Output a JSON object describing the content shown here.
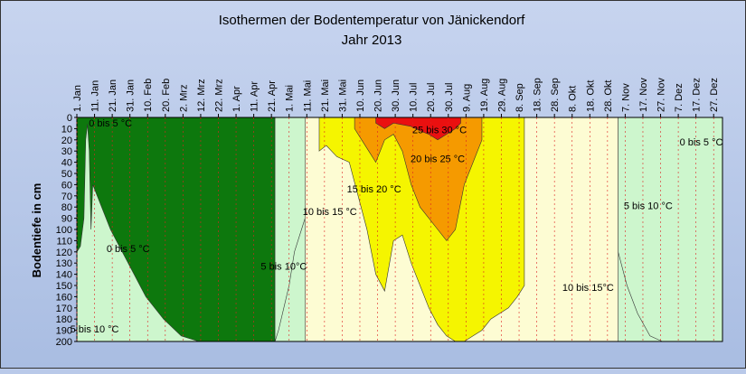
{
  "chart_data": {
    "type": "area",
    "title_line1": "Isothermen der Bodentemperatur von Jänickendorf",
    "title_line2": "Jahr 2013",
    "ylabel": "Bodentiefe in cm",
    "xlabel": "",
    "ylim": [
      0,
      200
    ],
    "y_inverted": true,
    "x_unit": "day_of_year",
    "x_ticks": [
      {
        "day": 1,
        "label": "1. Jan"
      },
      {
        "day": 11,
        "label": "11. Jan"
      },
      {
        "day": 21,
        "label": "21. Jan"
      },
      {
        "day": 31,
        "label": "31. Jan"
      },
      {
        "day": 41,
        "label": "10. Feb"
      },
      {
        "day": 51,
        "label": "20. Feb"
      },
      {
        "day": 61,
        "label": "2. Mrz"
      },
      {
        "day": 71,
        "label": "12. Mrz"
      },
      {
        "day": 81,
        "label": "22. Mrz"
      },
      {
        "day": 91,
        "label": "1. Apr"
      },
      {
        "day": 101,
        "label": "11. Apr"
      },
      {
        "day": 111,
        "label": "21. Apr"
      },
      {
        "day": 121,
        "label": "1. Mai"
      },
      {
        "day": 131,
        "label": "11. Mai"
      },
      {
        "day": 141,
        "label": "21. Mai"
      },
      {
        "day": 151,
        "label": "31. Mai"
      },
      {
        "day": 161,
        "label": "10. Jun"
      },
      {
        "day": 171,
        "label": "20. Jun"
      },
      {
        "day": 181,
        "label": "30. Jun"
      },
      {
        "day": 191,
        "label": "10. Jul"
      },
      {
        "day": 201,
        "label": "20. Jul"
      },
      {
        "day": 211,
        "label": "30. Jul"
      },
      {
        "day": 221,
        "label": "9. Aug"
      },
      {
        "day": 231,
        "label": "19. Aug"
      },
      {
        "day": 241,
        "label": "29. Aug"
      },
      {
        "day": 251,
        "label": "8. Sep"
      },
      {
        "day": 261,
        "label": "18. Sep"
      },
      {
        "day": 271,
        "label": "28. Sep"
      },
      {
        "day": 281,
        "label": "8. Okt"
      },
      {
        "day": 291,
        "label": "18. Okt"
      },
      {
        "day": 301,
        "label": "28. Okt"
      },
      {
        "day": 311,
        "label": "7. Nov"
      },
      {
        "day": 321,
        "label": "17. Nov"
      },
      {
        "day": 331,
        "label": "27. Nov"
      },
      {
        "day": 341,
        "label": "7. Dez"
      },
      {
        "day": 351,
        "label": "17. Dez"
      },
      {
        "day": 361,
        "label": "27. Dez"
      }
    ],
    "y_ticks": [
      0,
      10,
      20,
      30,
      40,
      50,
      60,
      70,
      80,
      90,
      100,
      110,
      120,
      130,
      140,
      150,
      160,
      170,
      180,
      190,
      200
    ],
    "zones": [
      {
        "name": "0 bis 5 °C",
        "color": "#0d780d",
        "regions": [
          {
            "x": [
              1,
              3,
              5,
              6,
              7,
              8,
              9,
              10,
              20,
              30,
              40,
              50,
              60,
              70,
              80,
              90,
              95,
              100,
              105,
              107,
              110,
              113
            ],
            "depth": [
              120,
              115,
              90,
              20,
              6,
              30,
              100,
              60,
              100,
              130,
              160,
              180,
              195,
              200,
              200,
              200,
              200,
              200,
              200,
              200,
              200,
              200
            ],
            "top": [
              0,
              0,
              0,
              0,
              0,
              0,
              0,
              0,
              0,
              0,
              0,
              0,
              0,
              0,
              0,
              0,
              0,
              0,
              0,
              0,
              0,
              0
            ]
          }
        ]
      },
      {
        "name": "5 bis 10 °C",
        "color": "#cdf6cd",
        "regions": [
          {
            "x": [
              113,
              115,
              118,
              121,
              124,
              128,
              132,
              135,
              138
            ],
            "depth": [
              200,
              190,
              170,
              150,
              120,
              100,
              80,
              60,
              40
            ],
            "top": [
              0,
              0,
              0,
              0,
              0,
              0,
              0,
              0,
              0
            ]
          },
          {
            "x": [
              307,
              312,
              318,
              325,
              332,
              340,
              348,
              356,
              362,
              366
            ],
            "depth": [
              120,
              150,
              175,
              195,
              200,
              200,
              200,
              200,
              200,
              200
            ],
            "top": [
              0,
              0,
              0,
              0,
              0,
              0,
              0,
              0,
              0,
              0
            ]
          }
        ]
      },
      {
        "name": "10 bis 15 °C",
        "color": "#fdfcd3",
        "regions": [
          {
            "x": [
              130,
              140,
              150,
              160,
              170,
              180,
              190,
              200,
              210,
              220,
              230,
              240,
              250,
              260,
              270,
              280,
              290,
              300,
              307
            ],
            "depth": [
              200,
              200,
              200,
              200,
              200,
              200,
              200,
              200,
              200,
              200,
              200,
              200,
              200,
              200,
              200,
              200,
              200,
              200,
              200
            ],
            "top": [
              0,
              0,
              0,
              0,
              0,
              0,
              0,
              0,
              0,
              0,
              0,
              0,
              0,
              0,
              0,
              0,
              0,
              0,
              0
            ]
          }
        ]
      },
      {
        "name": "15 bis 20 °C",
        "color": "#f5f500",
        "regions": [
          {
            "x": [
              138,
              142,
              148,
              155,
              160,
              165,
              170,
              175,
              180,
              185,
              190,
              195,
              200,
              205,
              210,
              215,
              220,
              225,
              230,
              235,
              240,
              245,
              250,
              254
            ],
            "depth": [
              30,
              25,
              35,
              40,
              70,
              100,
              140,
              155,
              110,
              105,
              130,
              150,
              170,
              185,
              195,
              200,
              200,
              195,
              190,
              180,
              175,
              170,
              160,
              150
            ],
            "top": [
              0,
              0,
              0,
              0,
              0,
              0,
              0,
              0,
              0,
              0,
              0,
              0,
              0,
              0,
              0,
              0,
              0,
              0,
              0,
              0,
              0,
              0,
              0,
              0
            ]
          }
        ]
      },
      {
        "name": "20 bis 25 °C",
        "color": "#f59a00",
        "regions": [
          {
            "x": [
              158,
              162,
              166,
              170,
              175,
              180,
              185,
              190,
              195,
              200,
              205,
              210,
              215,
              220,
              225,
              230
            ],
            "depth": [
              10,
              20,
              30,
              40,
              20,
              15,
              30,
              60,
              80,
              90,
              100,
              110,
              100,
              60,
              40,
              20
            ],
            "top": [
              0,
              0,
              0,
              0,
              0,
              0,
              0,
              0,
              0,
              0,
              0,
              0,
              0,
              0,
              0,
              0
            ]
          }
        ]
      },
      {
        "name": "25 bis 30 °C",
        "color": "#ea1010",
        "regions": [
          {
            "x": [
              170,
              175,
              180,
              190,
              195,
              200,
              205,
              210,
              215,
              218
            ],
            "depth": [
              5,
              10,
              5,
              8,
              12,
              15,
              20,
              15,
              10,
              5
            ],
            "top": [
              0,
              0,
              0,
              0,
              0,
              0,
              0,
              0,
              0,
              0
            ]
          }
        ]
      }
    ],
    "annotations": [
      {
        "text": "0 bis 5 °C",
        "day": 20,
        "depth": 8
      },
      {
        "text": "0 bis 5 °C",
        "day": 30,
        "depth": 120
      },
      {
        "text": "5 bis 10 °C",
        "day": 11,
        "depth": 192
      },
      {
        "text": "5 bis 10°C",
        "day": 118,
        "depth": 136
      },
      {
        "text": "10 bis 15 °C",
        "day": 144,
        "depth": 87
      },
      {
        "text": "15 bis 20 °C",
        "day": 169,
        "depth": 67
      },
      {
        "text": "20 bis 25 °C",
        "day": 205,
        "depth": 40
      },
      {
        "text": "25 bis 30 °C",
        "day": 206,
        "depth": 14
      },
      {
        "text": "10 bis 15°C",
        "day": 290,
        "depth": 155
      },
      {
        "text": "5 bis 10 °C",
        "day": 324,
        "depth": 82
      },
      {
        "text": "0 bis 5 °C",
        "day": 354,
        "depth": 25
      }
    ]
  }
}
